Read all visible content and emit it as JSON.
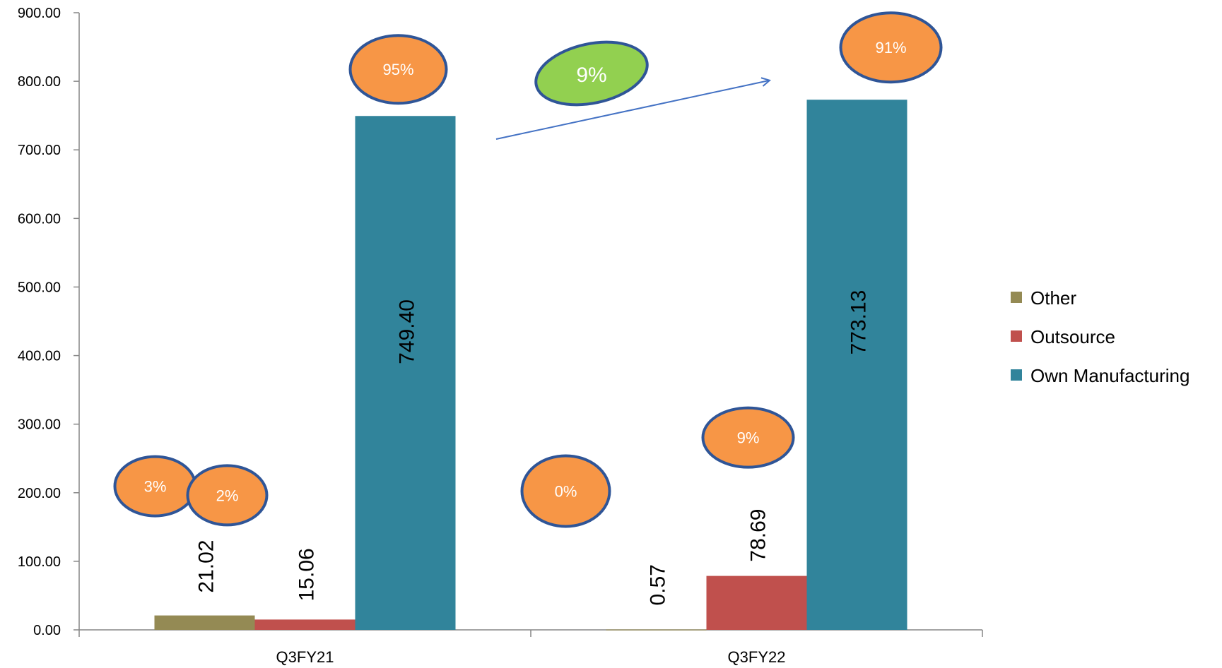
{
  "chart_data": {
    "type": "bar",
    "title": "",
    "xlabel": "",
    "ylabel": "",
    "categories": [
      "Q3FY21",
      "Q3FY22"
    ],
    "series": [
      {
        "name": "Other",
        "color": "#948A54",
        "values": [
          21.02,
          0.57
        ],
        "value_labels": [
          "21.02",
          "0.57"
        ],
        "share_labels": [
          "3%",
          "0%"
        ]
      },
      {
        "name": "Outsource",
        "color": "#C0504D",
        "values": [
          15.06,
          78.69
        ],
        "value_labels": [
          "15.06",
          "78.69"
        ],
        "share_labels": [
          "2%",
          "9%"
        ]
      },
      {
        "name": "Own Manufacturing",
        "color": "#31849B",
        "values": [
          749.4,
          773.13
        ],
        "value_labels": [
          "749.40",
          "773.13"
        ],
        "share_labels": [
          "95%",
          "91%"
        ]
      }
    ],
    "ylim": [
      0,
      900
    ],
    "yticks": [
      "0.00",
      "100.00",
      "200.00",
      "300.00",
      "400.00",
      "500.00",
      "600.00",
      "700.00",
      "800.00",
      "900.00"
    ],
    "grid": false,
    "legend_position": "right",
    "annotation": {
      "label": "9%",
      "type": "growth-arrow",
      "color": "#92D050"
    },
    "badge_color": "#F79646",
    "badge_border": "#2F5597"
  }
}
